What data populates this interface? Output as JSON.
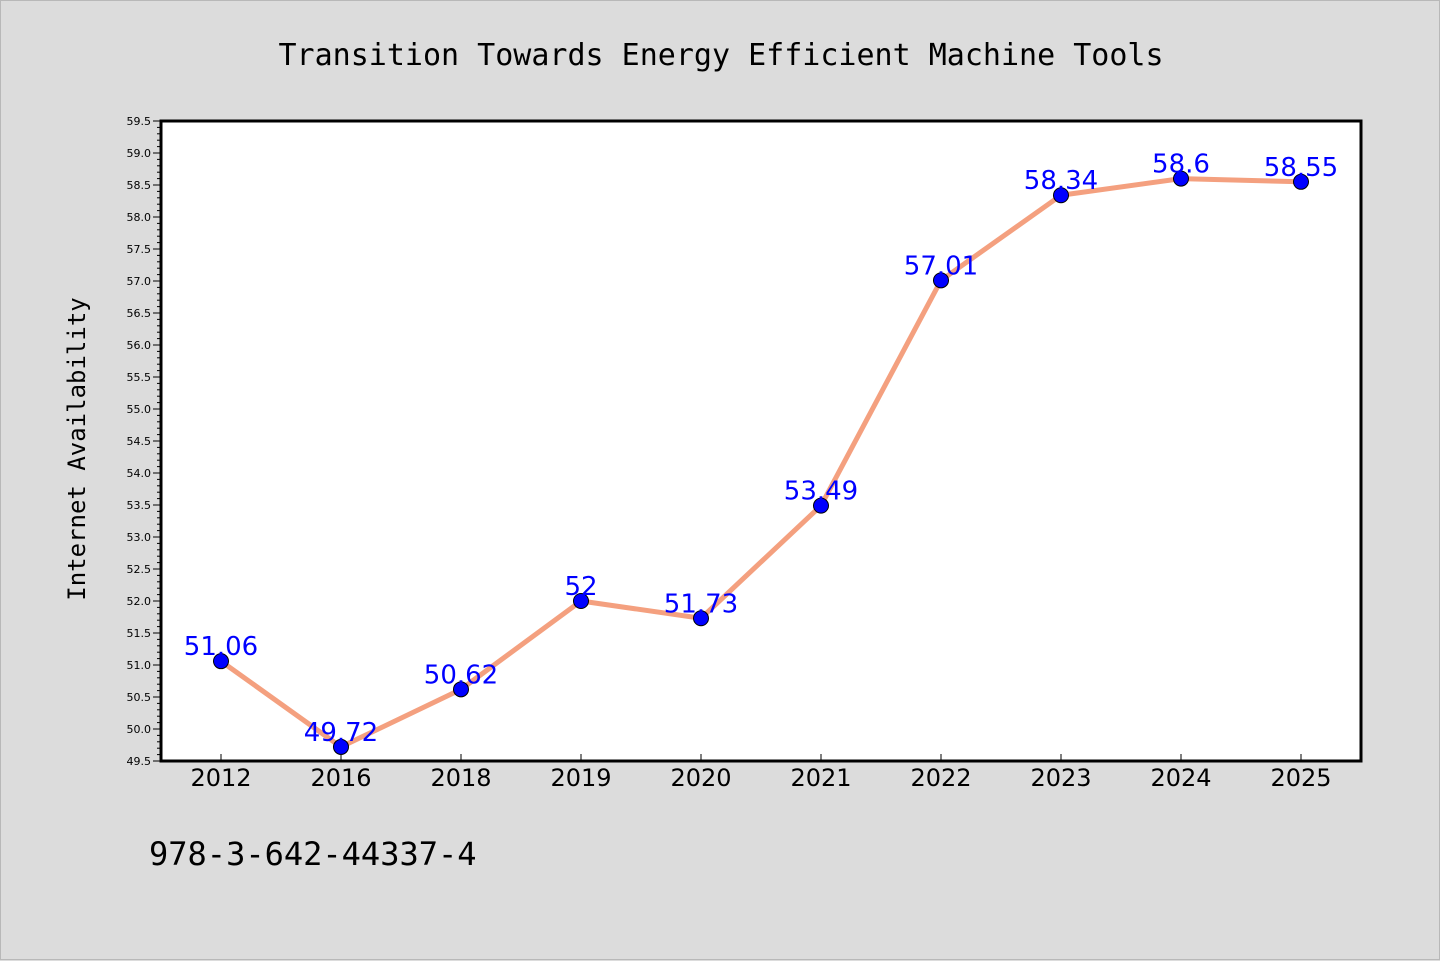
{
  "chart_data": {
    "type": "line",
    "title": "Transition Towards Energy Efficient Machine Tools",
    "xlabel": "",
    "ylabel": "Internet Availability",
    "categories": [
      "2012",
      "2016",
      "2018",
      "2019",
      "2020",
      "2021",
      "2022",
      "2023",
      "2024",
      "2025"
    ],
    "series": [
      {
        "values": [
          51.06,
          49.72,
          50.62,
          52,
          51.73,
          53.49,
          57.01,
          58.34,
          58.6,
          58.55
        ],
        "labels": [
          "51.06",
          "49.72",
          "50.62",
          "52",
          "51.73",
          "53.49",
          "57.01",
          "58.34",
          "58.6",
          "58.55"
        ],
        "line_color": "#f4a07f",
        "marker_color": "#0000ff"
      }
    ],
    "ylim": [
      49.5,
      59.5
    ],
    "yticks": [
      "49.5",
      "50.0",
      "50.5",
      "51.0",
      "51.5",
      "52.0",
      "52.5",
      "53.0",
      "53.5",
      "54.0",
      "54.5",
      "55.0",
      "55.5",
      "56.0",
      "56.5",
      "57.0",
      "57.5",
      "58.0",
      "58.5",
      "59.0",
      "59.5"
    ],
    "grid": false,
    "legend": "none"
  },
  "footer_text": "978-3-642-44337-4",
  "colors": {
    "background": "#dcdcdc",
    "plot_background": "#ffffff",
    "line": "#f4a07f",
    "marker": "#0000ff",
    "data_label": "#0000ff"
  }
}
